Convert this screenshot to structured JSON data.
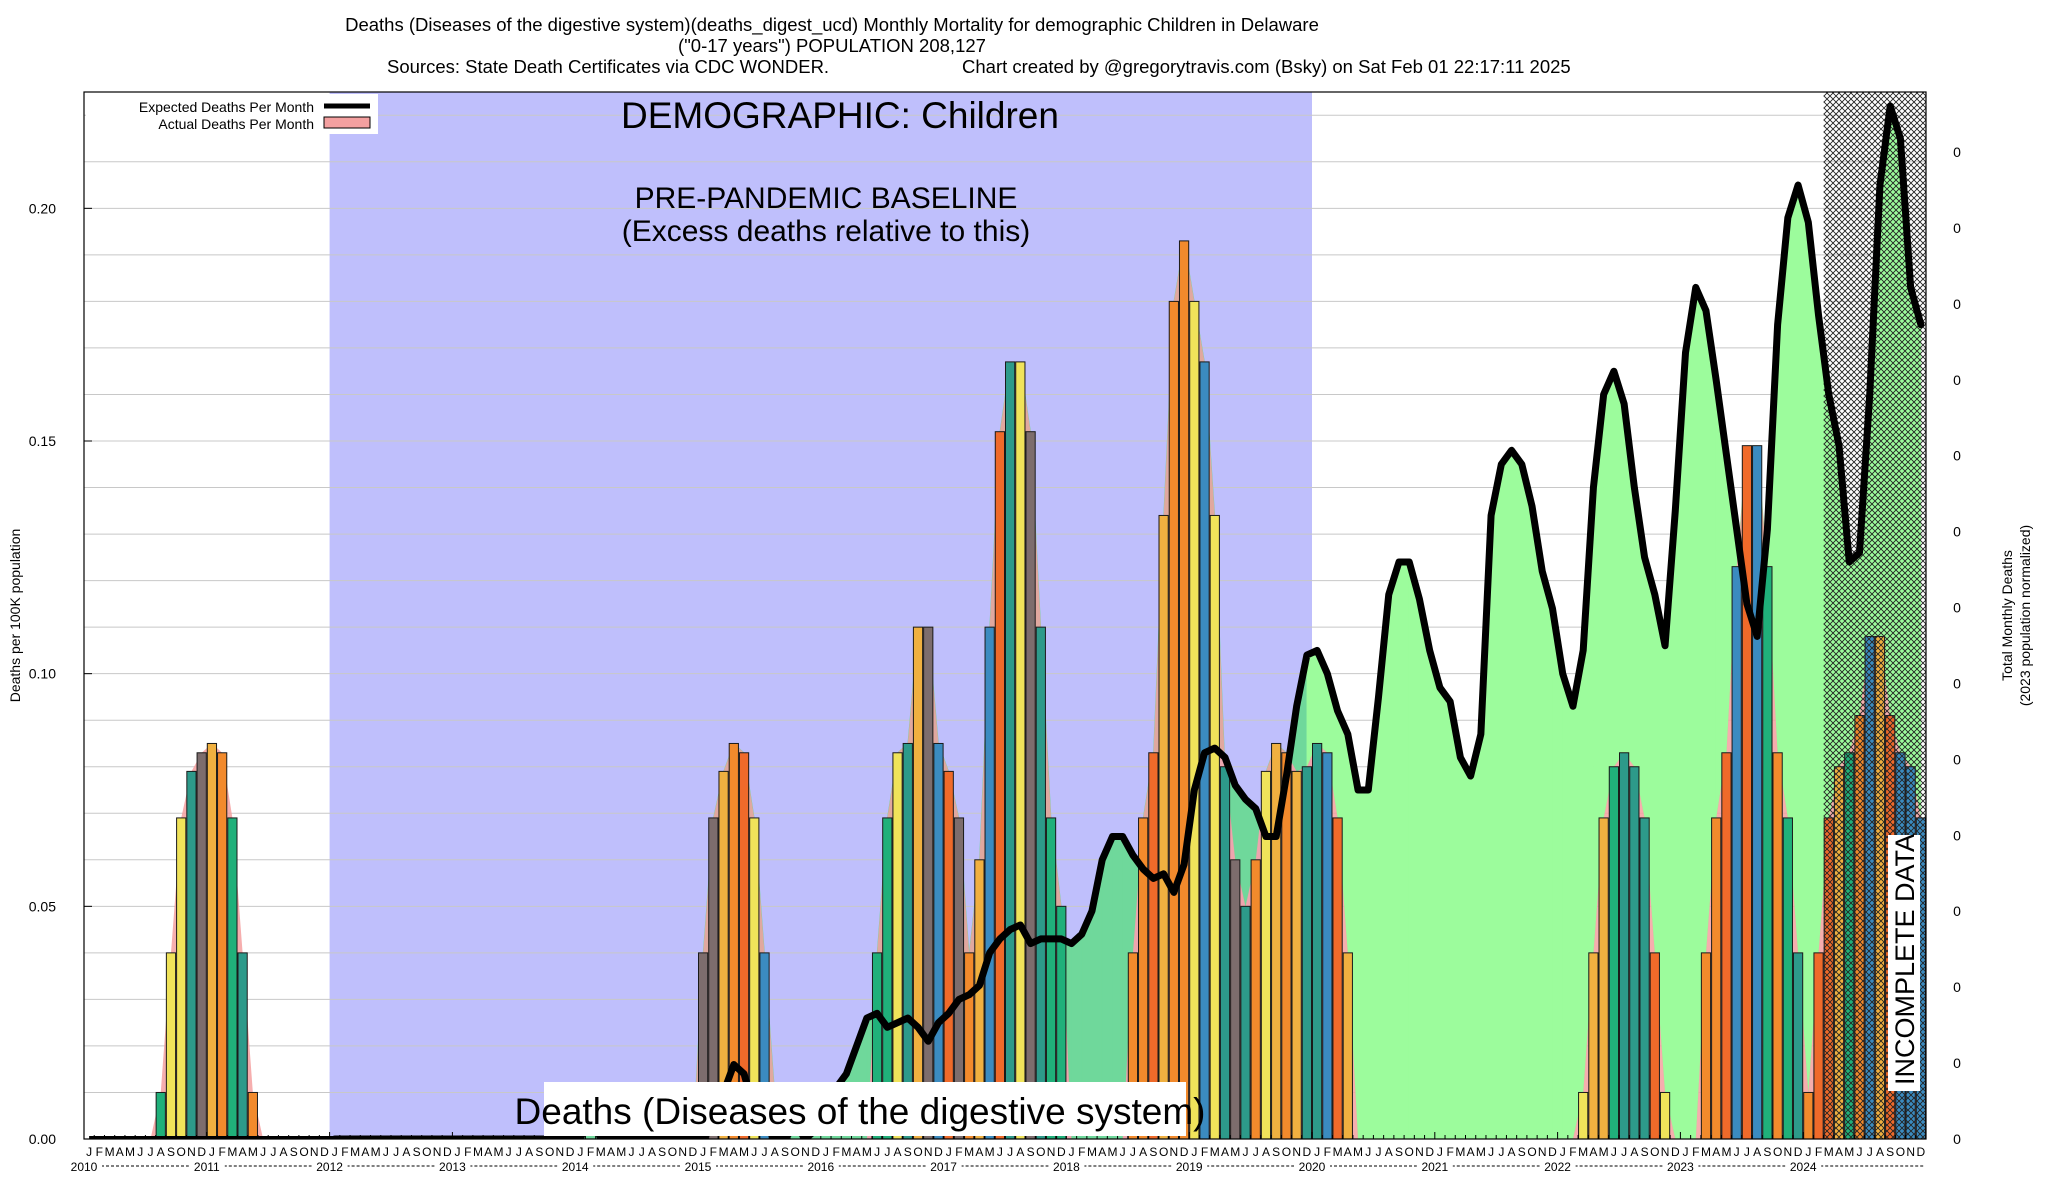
{
  "title": {
    "line1": "Deaths (Diseases of the digestive system)(deaths_digest_ucd) Monthly Mortality for demographic Children in Delaware",
    "line2": "(\"0-17 years\") POPULATION 208,127",
    "sources": "Sources: State Death Certificates via CDC WONDER.",
    "created": "Chart created by @gregorytravis.com (Bsky) on Sat Feb 01 22:17:11 2025"
  },
  "colors": {
    "baseline_region": "#bfbffc",
    "excess_fill": "#9cfc9c",
    "baseline_fill": "#6fd89b",
    "expected_line": "#000000",
    "actual_fill": "#f4a0a0",
    "incomplete_hatch": "#000000",
    "bar_palette": [
      "#f0e35a",
      "#f0b040",
      "#f28a2c",
      "#ef6a2a",
      "#7d6d6d",
      "#2d9a8a",
      "#3b8bc0",
      "#20b07a"
    ]
  },
  "chart_data": {
    "type": "bar",
    "x_start": "2010-01",
    "x_end": "2024-12",
    "ylabel": "Deaths per 100K population",
    "y2label_1": "Total Monthly Deaths",
    "y2label_2": "(2023 population normalized)",
    "ylim": [
      0,
      0.225
    ],
    "yticks": [
      "0.00",
      "0.05",
      "0.10",
      "0.15",
      "0.20"
    ],
    "y2ticks": [
      "0",
      "0",
      "0",
      "0",
      "0",
      "0",
      "0",
      "0",
      "0",
      "0",
      "0",
      "0",
      "0",
      "0"
    ],
    "grid": true,
    "month_letters": [
      "J",
      "F",
      "M",
      "A",
      "M",
      "J",
      "J",
      "A",
      "S",
      "O",
      "N",
      "D"
    ],
    "year_labels": [
      "2010",
      "2011",
      "2012",
      "2013",
      "2014",
      "2015",
      "2016",
      "2017",
      "2018",
      "2019",
      "2020",
      "2021",
      "2022",
      "2023",
      "2024"
    ],
    "legend": {
      "position": "top-left",
      "entries": [
        "Expected Deaths Per Month",
        "Actual Deaths Per Month"
      ]
    },
    "annotations": {
      "demographic": "DEMOGRAPHIC: Children",
      "baseline_1": "PRE-PANDEMIC BASELINE",
      "baseline_2": "(Excess deaths relative to this)",
      "cause": "Deaths (Diseases of the digestive system)",
      "incomplete": "INCOMPLETE DATA"
    },
    "baseline_period": [
      "2012-01",
      "2019-12"
    ],
    "incomplete_period": [
      "2024-03",
      "2024-12"
    ],
    "actual_series": {
      "name": "Actual Deaths Per Month",
      "values": [
        0,
        0,
        0,
        0,
        0,
        0,
        0,
        0.01,
        0.04,
        0.069,
        0.079,
        0.083,
        0.085,
        0.083,
        0.069,
        0.04,
        0.01,
        0,
        0,
        0,
        0,
        0,
        0,
        0,
        0,
        0,
        0,
        0,
        0,
        0,
        0,
        0,
        0,
        0,
        0,
        0,
        0,
        0,
        0,
        0,
        0,
        0,
        0,
        0,
        0,
        0,
        0,
        0,
        0,
        0,
        0,
        0,
        0,
        0,
        0,
        0,
        0,
        0,
        0,
        0,
        0.04,
        0.069,
        0.079,
        0.085,
        0.083,
        0.069,
        0.04,
        0.01,
        0,
        0,
        0,
        0,
        0,
        0,
        0,
        0,
        0,
        0.04,
        0.069,
        0.083,
        0.085,
        0.11,
        0.11,
        0.085,
        0.079,
        0.069,
        0.04,
        0.06,
        0.11,
        0.152,
        0.167,
        0.167,
        0.152,
        0.11,
        0.069,
        0.05,
        0,
        0,
        0,
        0,
        0,
        0,
        0.04,
        0.069,
        0.083,
        0.134,
        0.18,
        0.193,
        0.18,
        0.167,
        0.134,
        0.08,
        0.06,
        0.05,
        0.06,
        0.079,
        0.085,
        0.083,
        0.079,
        0.08,
        0.085,
        0.083,
        0.069,
        0.04,
        0,
        0,
        0,
        0,
        0,
        0,
        0,
        0,
        0,
        0,
        0,
        0,
        0,
        0,
        0,
        0,
        0,
        0,
        0,
        0,
        0,
        0,
        0.01,
        0.04,
        0.069,
        0.08,
        0.083,
        0.08,
        0.069,
        0.04,
        0.01,
        0,
        0,
        0,
        0.04,
        0.069,
        0.083,
        0.123,
        0.149,
        0.149,
        0.123,
        0.083,
        0.069,
        0.04,
        0.01,
        0.04,
        0.069,
        0.08,
        0.083,
        0.091,
        0.108,
        0.108,
        0.091,
        0.083,
        0.08,
        0.069
      ]
    },
    "expected_series": {
      "name": "Expected Deaths Per Month",
      "values": [
        0,
        0,
        0,
        0,
        0,
        0,
        0,
        0,
        0,
        0,
        0,
        0,
        0,
        0,
        0,
        0,
        0,
        0,
        0,
        0,
        0,
        0,
        0,
        0,
        0,
        0.006,
        0,
        0,
        0,
        0,
        0,
        0,
        0,
        0,
        0,
        0,
        0,
        0.003,
        0.01,
        0.016,
        0.014,
        0.006,
        0.003,
        0,
        0,
        0.003,
        0,
        0.002,
        0.008,
        0.011,
        0.014,
        0.02,
        0.026,
        0.027,
        0.024,
        0.025,
        0.026,
        0.024,
        0.021,
        0.025,
        0.027,
        0.03,
        0.031,
        0.033,
        0.04,
        0.043,
        0.045,
        0.046,
        0.042,
        0.043,
        0.043,
        0.043,
        0.042,
        0.044,
        0.049,
        0.06,
        0.065,
        0.065,
        0.061,
        0.058,
        0.056,
        0.057,
        0.053,
        0.059,
        0.075,
        0.083,
        0.084,
        0.082,
        0.076,
        0.073,
        0.071,
        0.065,
        0.065,
        0.078,
        0.093,
        0.104,
        0.105,
        0.1,
        0.092,
        0.087,
        0.075,
        0.075,
        0.095,
        0.117,
        0.124,
        0.124,
        0.116,
        0.105,
        0.097,
        0.094,
        0.082,
        0.078,
        0.087,
        0.134,
        0.145,
        0.148,
        0.145,
        0.136,
        0.122,
        0.114,
        0.1,
        0.093,
        0.105,
        0.14,
        0.16,
        0.165,
        0.158,
        0.14,
        0.125,
        0.117,
        0.106,
        0.135,
        0.169,
        0.183,
        0.178,
        0.163,
        0.147,
        0.131,
        0.115,
        0.108,
        0.131,
        0.175,
        0.198,
        0.205,
        0.197,
        0.177,
        0.16,
        0.149,
        0.124,
        0.126,
        0.16,
        0.205,
        0.222,
        0.215,
        0.183,
        0.175
      ],
      "start": "2012-01"
    }
  }
}
